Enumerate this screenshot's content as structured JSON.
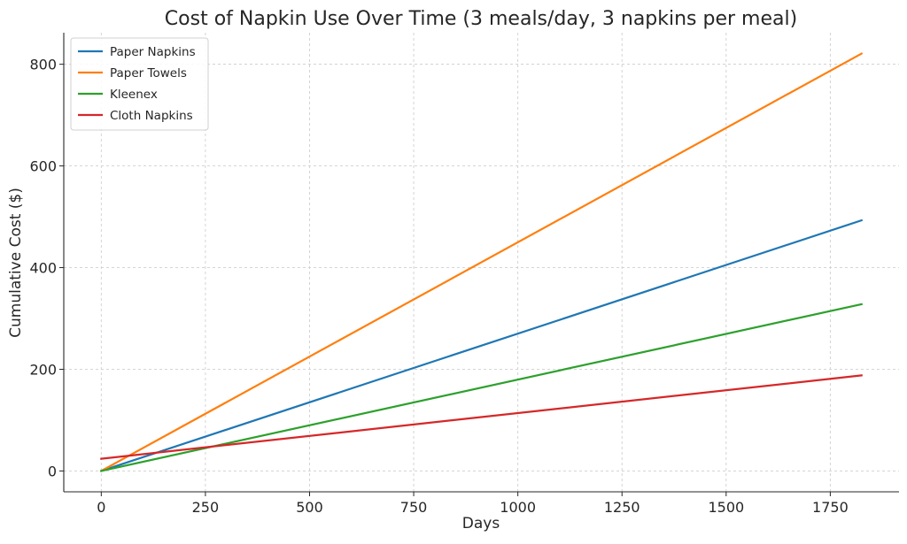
{
  "chart_data": {
    "type": "line",
    "title": "Cost of Napkin Use Over Time (3 meals/day, 3 napkins per meal)",
    "xlabel": "Days",
    "ylabel": "Cumulative Cost ($)",
    "xlim": [
      -90,
      1915
    ],
    "ylim": [
      -41,
      862
    ],
    "xticks": [
      0,
      250,
      500,
      750,
      1000,
      1250,
      1500,
      1750
    ],
    "yticks": [
      0,
      200,
      400,
      600,
      800
    ],
    "grid": true,
    "legend_position": "top-left",
    "series": [
      {
        "name": "Paper Napkins",
        "color": "#1f77b4",
        "x": [
          0,
          1825
        ],
        "y": [
          0,
          493
        ]
      },
      {
        "name": "Paper Towels",
        "color": "#ff7f0e",
        "x": [
          0,
          1825
        ],
        "y": [
          0,
          821
        ]
      },
      {
        "name": "Kleenex",
        "color": "#2ca02c",
        "x": [
          0,
          1825
        ],
        "y": [
          0,
          328
        ]
      },
      {
        "name": "Cloth Napkins",
        "color": "#d62728",
        "x": [
          0,
          1825
        ],
        "y": [
          24,
          188
        ]
      }
    ]
  }
}
